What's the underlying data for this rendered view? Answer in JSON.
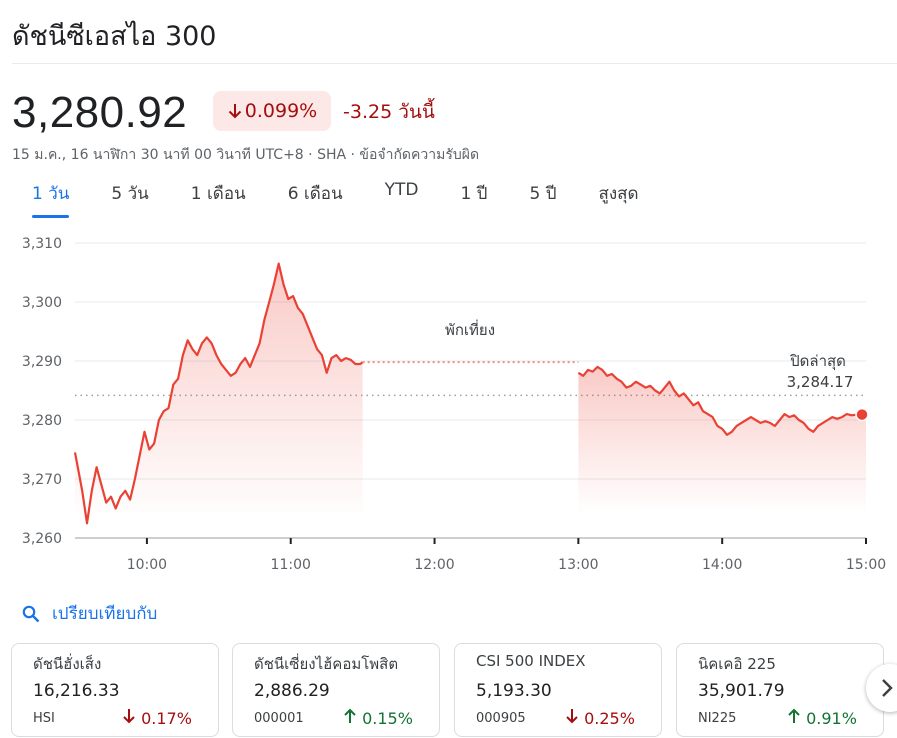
{
  "header": {
    "title": "ดัชนีซีเอสไอ 300"
  },
  "quote": {
    "price": "3,280.92",
    "percent_change": "0.099%",
    "change_today": "-3.25 วันนี้",
    "meta": "15 ม.ค., 16 นาฬิกา 30 นาที 00 วินาที UTC+8 · SHA · ข้อจำกัดความรับผิด"
  },
  "tabs": [
    {
      "label": "1 วัน",
      "active": true
    },
    {
      "label": "5 วัน"
    },
    {
      "label": "1 เดือน"
    },
    {
      "label": "6 เดือน"
    },
    {
      "label": "YTD"
    },
    {
      "label": "1 ปี"
    },
    {
      "label": "5 ปี"
    },
    {
      "label": "สูงสุด"
    }
  ],
  "chart_data": {
    "type": "line",
    "x_ticks": [
      "10:00",
      "11:00",
      "12:00",
      "13:00",
      "14:00",
      "15:00"
    ],
    "y_ticks": [
      "3,310",
      "3,300",
      "3,290",
      "3,280",
      "3,270",
      "3,260"
    ],
    "ylim": [
      3260,
      3310
    ],
    "xlim": [
      "09:30",
      "15:00"
    ],
    "annotation_break": "พักเที่ยง",
    "previous_close_label": "ปิดล่าสุด",
    "previous_close_value": "3,284.17",
    "previous_close": 3284.17,
    "line_color": "#e94235",
    "series": [
      {
        "morning": [
          [
            "09:30",
            3274.5
          ],
          [
            "09:33",
            3268
          ],
          [
            "09:35",
            3262.5
          ],
          [
            "09:37",
            3268
          ],
          [
            "09:39",
            3272
          ],
          [
            "09:41",
            3269
          ],
          [
            "09:43",
            3266
          ],
          [
            "09:45",
            3267
          ],
          [
            "09:47",
            3265
          ],
          [
            "09:49",
            3267
          ],
          [
            "09:51",
            3268
          ],
          [
            "09:53",
            3266.5
          ],
          [
            "09:55",
            3270
          ],
          [
            "09:57",
            3274
          ],
          [
            "09:59",
            3278
          ],
          [
            "10:01",
            3275
          ],
          [
            "10:03",
            3276
          ],
          [
            "10:05",
            3280
          ],
          [
            "10:07",
            3281.5
          ],
          [
            "10:09",
            3282
          ],
          [
            "10:11",
            3286
          ],
          [
            "10:13",
            3287
          ],
          [
            "10:15",
            3291
          ],
          [
            "10:17",
            3293.5
          ],
          [
            "10:19",
            3292
          ],
          [
            "10:21",
            3291
          ],
          [
            "10:23",
            3293
          ],
          [
            "10:25",
            3294
          ],
          [
            "10:27",
            3293
          ],
          [
            "10:29",
            3291
          ],
          [
            "10:31",
            3289.5
          ],
          [
            "10:33",
            3288.5
          ],
          [
            "10:35",
            3287.5
          ],
          [
            "10:37",
            3288
          ],
          [
            "10:39",
            3289.5
          ],
          [
            "10:41",
            3290.5
          ],
          [
            "10:43",
            3289
          ],
          [
            "10:45",
            3291
          ],
          [
            "10:47",
            3293
          ],
          [
            "10:49",
            3297
          ],
          [
            "10:51",
            3300
          ],
          [
            "10:53",
            3303
          ],
          [
            "10:55",
            3306.5
          ],
          [
            "10:57",
            3303
          ],
          [
            "10:59",
            3300.5
          ],
          [
            "11:01",
            3301
          ],
          [
            "11:03",
            3299
          ],
          [
            "11:05",
            3298
          ],
          [
            "11:07",
            3296
          ],
          [
            "11:09",
            3294
          ],
          [
            "11:11",
            3292
          ],
          [
            "11:13",
            3291
          ],
          [
            "11:15",
            3288
          ],
          [
            "11:17",
            3290.5
          ],
          [
            "11:19",
            3291
          ],
          [
            "11:21",
            3290
          ],
          [
            "11:23",
            3290.5
          ],
          [
            "11:25",
            3290.2
          ],
          [
            "11:27",
            3289.5
          ],
          [
            "11:29",
            3289.5
          ],
          [
            "11:30",
            3289.8
          ]
        ]
      },
      {
        "afternoon": [
          [
            "13:00",
            3288
          ],
          [
            "13:02",
            3287.5
          ],
          [
            "13:04",
            3288.5
          ],
          [
            "13:06",
            3288.2
          ],
          [
            "13:08",
            3289
          ],
          [
            "13:10",
            3288.5
          ],
          [
            "13:12",
            3287.5
          ],
          [
            "13:14",
            3287.8
          ],
          [
            "13:16",
            3287
          ],
          [
            "13:18",
            3286.5
          ],
          [
            "13:20",
            3285.5
          ],
          [
            "13:22",
            3285.8
          ],
          [
            "13:24",
            3286.5
          ],
          [
            "13:26",
            3286
          ],
          [
            "13:28",
            3285.5
          ],
          [
            "13:30",
            3285.8
          ],
          [
            "13:32",
            3285
          ],
          [
            "13:34",
            3284.5
          ],
          [
            "13:36",
            3285.5
          ],
          [
            "13:38",
            3286.5
          ],
          [
            "13:40",
            3285
          ],
          [
            "13:42",
            3284
          ],
          [
            "13:44",
            3284.5
          ],
          [
            "13:46",
            3283.5
          ],
          [
            "13:48",
            3282.5
          ],
          [
            "13:50",
            3283
          ],
          [
            "13:52",
            3281.5
          ],
          [
            "13:54",
            3281
          ],
          [
            "13:56",
            3280.5
          ],
          [
            "13:58",
            3279
          ],
          [
            "14:00",
            3278.5
          ],
          [
            "14:02",
            3277.5
          ],
          [
            "14:04",
            3278
          ],
          [
            "14:06",
            3279
          ],
          [
            "14:08",
            3279.5
          ],
          [
            "14:10",
            3280
          ],
          [
            "14:12",
            3280.5
          ],
          [
            "14:14",
            3280
          ],
          [
            "14:16",
            3279.5
          ],
          [
            "14:18",
            3279.8
          ],
          [
            "14:20",
            3279.5
          ],
          [
            "14:22",
            3279
          ],
          [
            "14:24",
            3280
          ],
          [
            "14:26",
            3281
          ],
          [
            "14:28",
            3280.5
          ],
          [
            "14:30",
            3280.8
          ],
          [
            "14:32",
            3280
          ],
          [
            "14:34",
            3279.5
          ],
          [
            "14:36",
            3278.5
          ],
          [
            "14:38",
            3278
          ],
          [
            "14:40",
            3279
          ],
          [
            "14:42",
            3279.5
          ],
          [
            "14:44",
            3280
          ],
          [
            "14:46",
            3280.5
          ],
          [
            "14:48",
            3280.2
          ],
          [
            "14:50",
            3280.5
          ],
          [
            "14:52",
            3281
          ],
          [
            "14:54",
            3280.8
          ],
          [
            "14:56",
            3280.9
          ],
          [
            "14:58",
            3280.9
          ],
          [
            "15:00",
            3280.92
          ]
        ]
      }
    ]
  },
  "compare": {
    "label": "เปรียบเทียบกับ"
  },
  "cards": [
    {
      "name": "ดัชนีฮั่งเส็ง",
      "value": "16,216.33",
      "ticker": "HSI",
      "change": "0.17%",
      "direction": "down"
    },
    {
      "name": "ดัชนีเซี่ยงไฮ้คอมโพสิต",
      "value": "2,886.29",
      "ticker": "000001",
      "change": "0.15%",
      "direction": "up"
    },
    {
      "name": "CSI 500 INDEX",
      "value": "5,193.30",
      "ticker": "000905",
      "change": "0.25%",
      "direction": "down"
    },
    {
      "name": "นิคเคอิ 225",
      "value": "35,901.79",
      "ticker": "NI225",
      "change": "0.91%",
      "direction": "up"
    }
  ],
  "colors": {
    "accent": "#1a73e8",
    "down": "#a50e0e",
    "up": "#137333",
    "line": "#e94235"
  },
  "icons": {
    "arrow_down": "arrow-down-icon",
    "arrow_up": "arrow-up-icon",
    "search": "search-icon",
    "next": "chevron-right-icon"
  }
}
